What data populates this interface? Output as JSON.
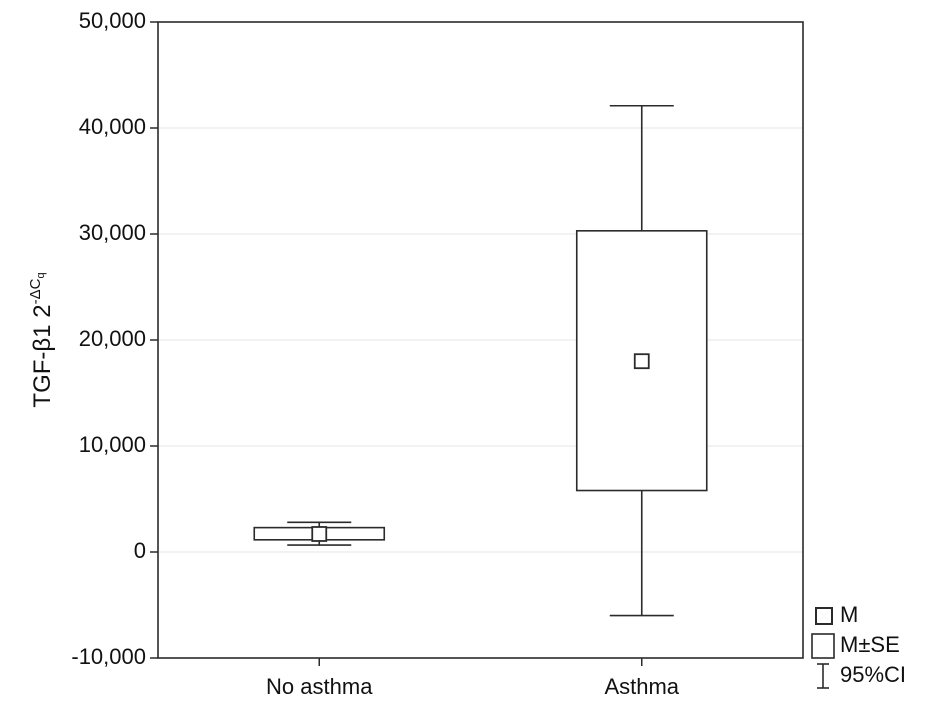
{
  "chart_data": {
    "type": "box",
    "title": "",
    "xlabel": "",
    "ylabel": {
      "main": "TGF-β1",
      "base": "2",
      "exp_symbol": "-ΔC",
      "exp_sub": "q"
    },
    "ylim": [
      -10000,
      50000
    ],
    "yticks": [
      -10000,
      0,
      10000,
      20000,
      30000,
      40000,
      50000
    ],
    "ytick_labels": [
      "-10,000",
      "0",
      "10,000",
      "20,000",
      "30,000",
      "40,000",
      "50,000"
    ],
    "categories": [
      "No asthma",
      "Asthma"
    ],
    "series": [
      {
        "category": "No asthma",
        "mean": 1700,
        "se_low": 1150,
        "se_high": 2300,
        "ci_low": 650,
        "ci_high": 2800
      },
      {
        "category": "Asthma",
        "mean": 18000,
        "se_low": 5800,
        "se_high": 30300,
        "ci_low": -6000,
        "ci_high": 42100
      }
    ],
    "grid": true,
    "legend": {
      "placement": "bottom-right",
      "items": [
        {
          "symbol": "mean-marker",
          "label": "M"
        },
        {
          "symbol": "se-box",
          "label": "M±SE"
        },
        {
          "symbol": "ci-whisker",
          "label": "95%CI"
        }
      ]
    }
  },
  "colors": {
    "stroke": "#2b2b2b",
    "grid": "#e6e6e6",
    "background": "#ffffff"
  }
}
